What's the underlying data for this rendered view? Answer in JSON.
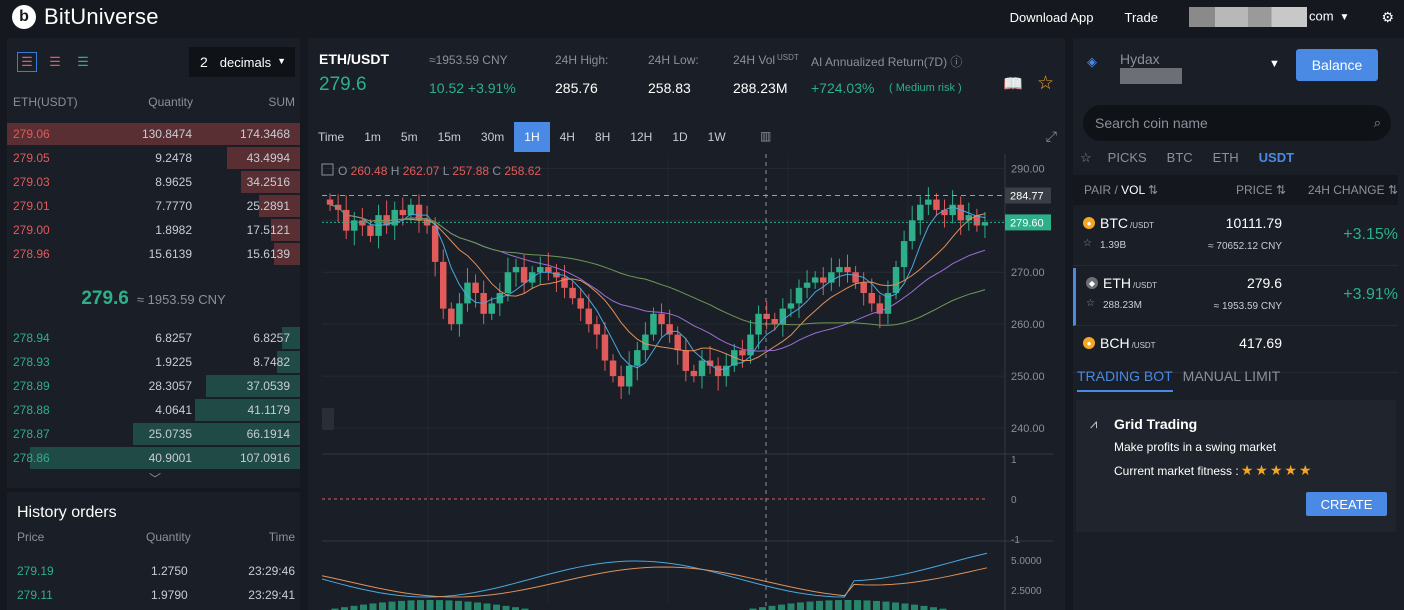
{
  "brand": {
    "name": "BitUniverse",
    "logo_letter": "b"
  },
  "topbar": {
    "download": "Download App",
    "trade": "Trade",
    "account_suffix": "com"
  },
  "orderbook": {
    "decimals_value": "2",
    "decimals_label": "decimals",
    "headers": {
      "price": "ETH(USDT)",
      "quantity": "Quantity",
      "sum": "SUM"
    },
    "asks": [
      {
        "price": "279.06",
        "qty": "130.8474",
        "sum": "174.3468",
        "depth": 1.0
      },
      {
        "price": "279.05",
        "qty": "9.2478",
        "sum": "43.4994",
        "depth": 0.25
      },
      {
        "price": "279.03",
        "qty": "8.9625",
        "sum": "34.2516",
        "depth": 0.2
      },
      {
        "price": "279.01",
        "qty": "7.7770",
        "sum": "25.2891",
        "depth": 0.14
      },
      {
        "price": "279.00",
        "qty": "1.8982",
        "sum": "17.5121",
        "depth": 0.1
      },
      {
        "price": "278.96",
        "qty": "15.6139",
        "sum": "15.6139",
        "depth": 0.09
      }
    ],
    "last_price": "279.6",
    "last_cny": "≈ 1953.59 CNY",
    "bids": [
      {
        "price": "278.94",
        "qty": "6.8257",
        "sum": "6.8257",
        "depth": 0.06
      },
      {
        "price": "278.93",
        "qty": "1.9225",
        "sum": "8.7482",
        "depth": 0.08
      },
      {
        "price": "278.89",
        "qty": "28.3057",
        "sum": "37.0539",
        "depth": 0.32
      },
      {
        "price": "278.88",
        "qty": "4.0641",
        "sum": "41.1179",
        "depth": 0.36
      },
      {
        "price": "278.87",
        "qty": "25.0735",
        "sum": "66.1914",
        "depth": 0.57
      },
      {
        "price": "278.86",
        "qty": "40.9001",
        "sum": "107.0916",
        "depth": 0.92
      }
    ]
  },
  "history": {
    "title": "History orders",
    "headers": {
      "price": "Price",
      "quantity": "Quantity",
      "time": "Time"
    },
    "rows": [
      {
        "price": "279.19",
        "qty": "1.2750",
        "time": "23:29:46"
      },
      {
        "price": "279.11",
        "qty": "1.9790",
        "time": "23:29:41"
      }
    ]
  },
  "ticker": {
    "pair": "ETH/USDT",
    "price": "279.6",
    "cny": "≈1953.59 CNY",
    "change": "10.52 +3.91%",
    "high_label": "24H High:",
    "high": "285.76",
    "low_label": "24H Low:",
    "low": "258.83",
    "vol_label": "24H Vol",
    "vol_unit": "USDT",
    "vol": "288.23M",
    "ai_label": "AI Annualized Return(7D)",
    "ai_value": "+724.03%",
    "ai_risk": "( Medium risk )"
  },
  "timeframes": [
    "Time",
    "1m",
    "5m",
    "15m",
    "30m",
    "1H",
    "4H",
    "8H",
    "12H",
    "1D",
    "1W"
  ],
  "active_timeframe": "1H",
  "chart_data": {
    "type": "candlestick",
    "ohlc_label": {
      "o": "O",
      "o_val": "260.48",
      "h": "H",
      "h_val": "262.07",
      "l": "L",
      "l_val": "257.88",
      "c": "C",
      "c_val": "258.62"
    },
    "yticks": [
      "290.00",
      "280.00",
      "270.00",
      "260.00",
      "250.00",
      "240.00"
    ],
    "ylim": [
      235,
      292
    ],
    "high_marker": "284.77",
    "last_marker": "279.60",
    "closes": [
      283,
      282,
      278,
      280,
      279,
      277,
      281,
      279,
      282,
      281,
      283,
      280,
      279,
      272,
      263,
      260,
      264,
      268,
      266,
      262,
      264,
      266,
      270,
      271,
      268,
      270,
      271,
      270,
      269,
      267,
      265,
      263,
      260,
      258,
      253,
      250,
      248,
      252,
      255,
      258,
      262,
      260,
      258,
      255,
      251,
      250,
      253,
      252,
      250,
      252,
      255,
      254,
      258,
      262,
      261,
      260,
      263,
      264,
      267,
      268,
      269,
      268,
      270,
      271,
      270,
      268,
      266,
      264,
      262,
      266,
      271,
      276,
      280,
      283,
      284,
      282,
      281,
      283,
      280,
      281,
      279,
      279.6
    ],
    "ma_fast_color": "#4aa8e0",
    "ma_mid_color": "#e0915a",
    "ma_slow_color": "#9b6fd8",
    "ma_long_color": "#6c9a5a",
    "macd_ticks": [
      "1",
      "0",
      "-1"
    ],
    "kdj_ticks": [
      "5.0000",
      "2.5000"
    ]
  },
  "right": {
    "account_name": "Hydax",
    "balance_button": "Balance",
    "search_placeholder": "Search coin name",
    "market_tabs": [
      "PICKS",
      "BTC",
      "ETH",
      "USDT"
    ],
    "active_market": "USDT",
    "headers": {
      "pair": "PAIR",
      "vol": "VOL",
      "price": "PRICE",
      "change": "24H CHANGE"
    },
    "coins": [
      {
        "symbol": "BTC",
        "quote": "/USDT",
        "vol": "1.39B",
        "price": "10111.79",
        "cny": "≈ 70652.12 CNY",
        "change": "+3.15%",
        "color": "#f5a623"
      },
      {
        "symbol": "ETH",
        "quote": "/USDT",
        "vol": "288.23M",
        "price": "279.6",
        "cny": "≈ 1953.59 CNY",
        "change": "+3.91%",
        "color": "#6c6f75"
      },
      {
        "symbol": "BCH",
        "quote": "/USDT",
        "vol": "",
        "price": "417.69",
        "cny": "",
        "change": "",
        "color": "#f5a623"
      }
    ],
    "bot_tabs": [
      "TRADING BOT",
      "MANUAL LIMIT"
    ],
    "grid": {
      "title": "Grid Trading",
      "desc": "Make profits in a swing market",
      "fitness": "Current market fitness :",
      "stars": 5,
      "create": "CREATE"
    }
  }
}
